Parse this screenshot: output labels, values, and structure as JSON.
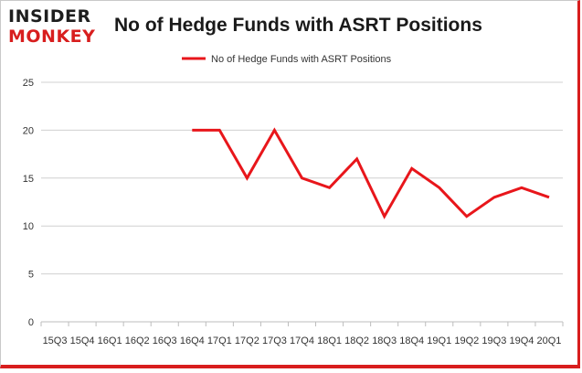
{
  "header": {
    "logo_top": "INSIDER",
    "logo_bottom": "MONKEY",
    "title": "No of Hedge Funds with ASRT Positions"
  },
  "colors": {
    "accent": "#d81e1e",
    "series": "#e8161b",
    "grid": "#d0d0d0"
  },
  "chart_data": {
    "type": "line",
    "title": "No of Hedge Funds with ASRT Positions",
    "xlabel": "",
    "ylabel": "",
    "ylim": [
      0,
      25
    ],
    "yticks": [
      0,
      5,
      10,
      15,
      20,
      25
    ],
    "grid": true,
    "legend_position": "top-center",
    "categories": [
      "15Q3",
      "15Q4",
      "16Q1",
      "16Q2",
      "16Q3",
      "16Q4",
      "17Q1",
      "17Q2",
      "17Q3",
      "17Q4",
      "18Q1",
      "18Q2",
      "18Q3",
      "18Q4",
      "19Q1",
      "19Q2",
      "19Q3",
      "19Q4",
      "20Q1"
    ],
    "series": [
      {
        "name": "No of Hedge Funds with ASRT Positions",
        "values": [
          null,
          null,
          null,
          null,
          null,
          20,
          20,
          15,
          20,
          15,
          14,
          17,
          11,
          16,
          14,
          11,
          13,
          14,
          13
        ]
      }
    ]
  }
}
